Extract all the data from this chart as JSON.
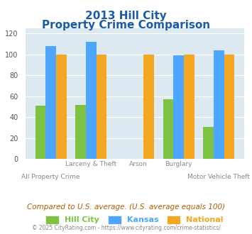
{
  "title_line1": "2013 Hill City",
  "title_line2": "Property Crime Comparison",
  "categories": [
    "All Property Crime",
    "Larceny & Theft",
    "Arson",
    "Burglary",
    "Motor Vehicle Theft"
  ],
  "series": {
    "Hill City": [
      51,
      52,
      0,
      57,
      31
    ],
    "Kansas": [
      108,
      112,
      0,
      99,
      104
    ],
    "National": [
      100,
      100,
      100,
      100,
      100
    ]
  },
  "colors": {
    "Hill City": "#7dc242",
    "Kansas": "#4da6ff",
    "National": "#f5a623"
  },
  "ylim": [
    0,
    125
  ],
  "yticks": [
    0,
    20,
    40,
    60,
    80,
    100,
    120
  ],
  "bg_color": "#dce9f0",
  "note": "Compared to U.S. average. (U.S. average equals 100)",
  "footer": "© 2025 CityRating.com - https://www.cityrating.com/crime-statistics/",
  "title_color": "#1a5ca8",
  "note_color": "#b85c00",
  "footer_color": "#888888",
  "xlabel_color": "#888888"
}
